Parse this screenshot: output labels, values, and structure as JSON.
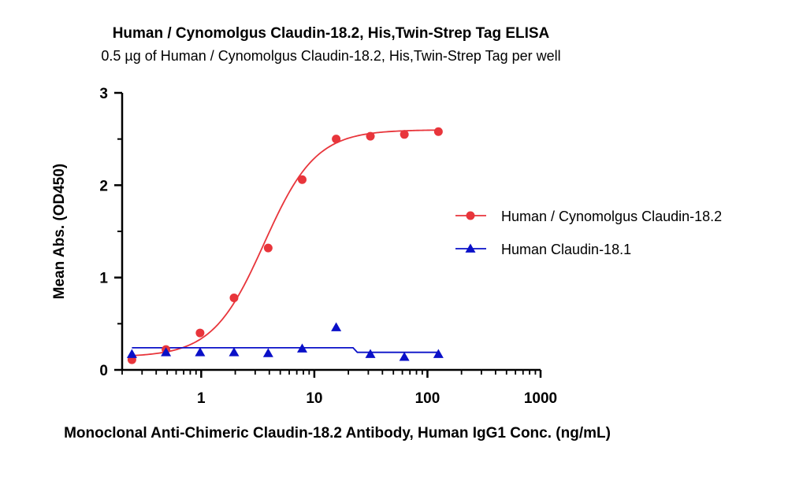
{
  "chart_data": {
    "type": "scatter",
    "title": "Human / Cynomolgus Claudin-18.2, His,Twin-Strep Tag ELISA",
    "subtitle": "0.5 µg of Human / Cynomolgus Claudin-18.2, His,Twin-Strep Tag per well",
    "xlabel": "Monoclonal Anti-Chimeric Claudin-18.2 Antibody, Human IgG1 Conc. (ng/mL)",
    "ylabel": "Mean Abs. (OD450)",
    "xscale": "log",
    "xlim": [
      0.2,
      1000
    ],
    "ylim": [
      0,
      3
    ],
    "xticks": [
      1,
      10,
      100,
      1000
    ],
    "xtick_labels": [
      "1",
      "10",
      "100",
      "1000"
    ],
    "yticks": [
      0,
      1,
      2,
      3
    ],
    "ytick_labels": [
      "0",
      "1",
      "2",
      "3"
    ],
    "grid": false,
    "legend_position": "right",
    "series": [
      {
        "name": "Human / Cynomolgus Claudin-18.2",
        "color": "#e8353b",
        "marker": "circle",
        "x": [
          0.244,
          0.488,
          0.977,
          1.95,
          3.91,
          7.81,
          15.6,
          31.3,
          62.5,
          125
        ],
        "y": [
          0.11,
          0.22,
          0.4,
          0.78,
          1.32,
          2.06,
          2.5,
          2.53,
          2.55,
          2.58
        ],
        "fit": {
          "model": "4PL",
          "bottom": 0.14,
          "top": 2.6,
          "ec50": 3.6,
          "hill": 1.9
        }
      },
      {
        "name": "Human Claudin-18.1",
        "color": "#0a10c8",
        "marker": "triangle",
        "x": [
          0.244,
          0.488,
          0.977,
          1.95,
          3.91,
          7.81,
          15.6,
          31.3,
          62.5,
          125
        ],
        "y": [
          0.17,
          0.19,
          0.19,
          0.19,
          0.18,
          0.23,
          0.46,
          0.17,
          0.14,
          0.17
        ],
        "fit_line": {
          "x": [
            0.244,
            22,
            24,
            125
          ],
          "y": [
            0.24,
            0.24,
            0.19,
            0.19
          ]
        }
      }
    ]
  }
}
